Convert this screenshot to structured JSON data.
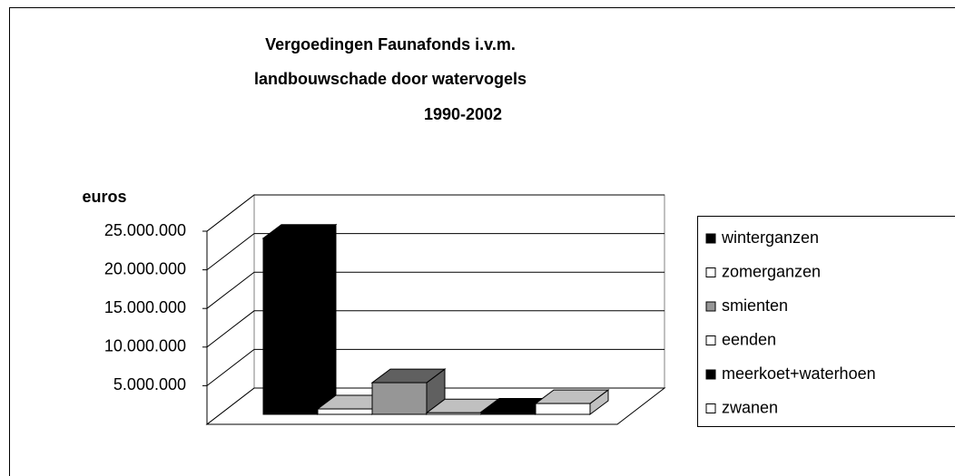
{
  "chart_data": {
    "type": "bar3d",
    "title": [
      "Vergoedingen Faunafonds i.v.m.",
      "landbouwschade door watervogels",
      "1990-2002"
    ],
    "y_label": "euros",
    "series": [
      {
        "name": "winterganzen",
        "color": "#000000",
        "values": [
          22800000
        ]
      },
      {
        "name": "zomerganzen",
        "color": "#ffffff",
        "values": [
          700000
        ]
      },
      {
        "name": "smienten",
        "color": "#969696",
        "values": [
          4100000
        ]
      },
      {
        "name": "eenden",
        "color": "#ffffff",
        "values": [
          200000
        ]
      },
      {
        "name": "meerkoet+waterhoen",
        "color": "#000000",
        "values": [
          300000
        ]
      },
      {
        "name": "zwanen",
        "color": "#ffffff",
        "values": [
          1400000
        ]
      }
    ],
    "ylim": [
      0,
      25000000
    ],
    "yticks": [
      {
        "value": 5000000,
        "label": "5.000.000"
      },
      {
        "value": 10000000,
        "label": "10.000.000"
      },
      {
        "value": 15000000,
        "label": "15.000.000"
      },
      {
        "value": 20000000,
        "label": "20.000.000"
      },
      {
        "value": 25000000,
        "label": "25.000.000"
      }
    ],
    "grid": true,
    "legend": "right"
  }
}
